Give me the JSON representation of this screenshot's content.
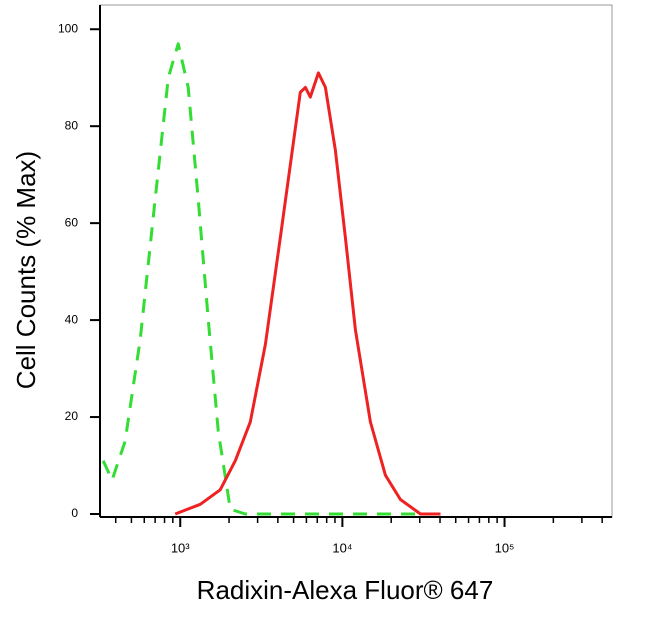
{
  "chart_data": {
    "type": "line",
    "xscale": "log",
    "x_label": "Radixin-Alexa Fluor® 647",
    "y_label": "Cell Counts (% Max)",
    "xlim": [
      320,
      460000
    ],
    "ylim": [
      0,
      105
    ],
    "xticks": [
      {
        "value": 1000,
        "label": "10³"
      },
      {
        "value": 10000,
        "label": "10⁴"
      },
      {
        "value": 100000,
        "label": "10⁵"
      }
    ],
    "xminorticks": [
      400,
      500,
      600,
      700,
      800,
      900,
      2000,
      3000,
      4000,
      5000,
      6000,
      7000,
      8000,
      9000,
      20000,
      30000,
      40000,
      50000,
      60000,
      70000,
      80000,
      90000,
      200000,
      300000,
      400000
    ],
    "yticks": [
      0,
      20,
      40,
      60,
      80,
      100
    ],
    "series": [
      {
        "color": "#33dd33",
        "dashed": true,
        "x": [
          335,
          380,
          457,
          566,
          701,
          844,
          972,
          1120,
          1291,
          1489,
          1718,
          2036,
          2519,
          30300
        ],
        "values": [
          11,
          7,
          15,
          36,
          65,
          90,
          97,
          88,
          65,
          40,
          17,
          1,
          0,
          0
        ]
      },
      {
        "color": "#ee2222",
        "dashed": false,
        "x": [
          931,
          1329,
          1765,
          2187,
          2705,
          3350,
          4140,
          4910,
          5500,
          5910,
          6340,
          7110,
          7860,
          9050,
          10440,
          12030,
          14890,
          18420,
          22800,
          30300,
          40300
        ],
        "values": [
          0,
          2,
          5,
          11,
          19,
          35,
          57,
          75,
          87,
          88,
          86,
          91,
          88,
          75,
          57,
          38,
          19,
          8,
          3,
          0,
          0
        ]
      }
    ]
  }
}
